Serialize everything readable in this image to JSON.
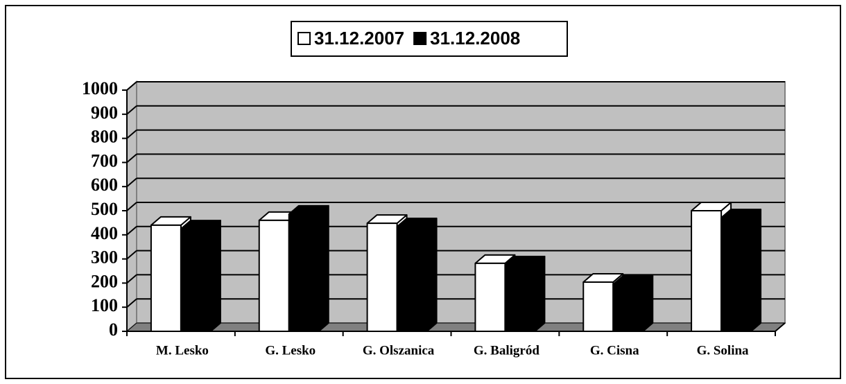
{
  "chart_data": {
    "type": "bar3d",
    "categories": [
      "M. Lesko",
      "G. Lesko",
      "G. Olszanica",
      "G. Baligród",
      "G. Cisna",
      "G. Solina"
    ],
    "series": [
      {
        "name": "31.12.2007",
        "color": "#ffffff",
        "values": [
          440,
          460,
          448,
          282,
          204,
          500
        ]
      },
      {
        "name": "31.12.2008",
        "color": "#000000",
        "values": [
          425,
          486,
          434,
          276,
          195,
          471
        ]
      }
    ],
    "ylim": [
      0,
      1000
    ],
    "yticks": [
      0,
      100,
      200,
      300,
      400,
      500,
      600,
      700,
      800,
      900,
      1000
    ],
    "grid": true
  }
}
